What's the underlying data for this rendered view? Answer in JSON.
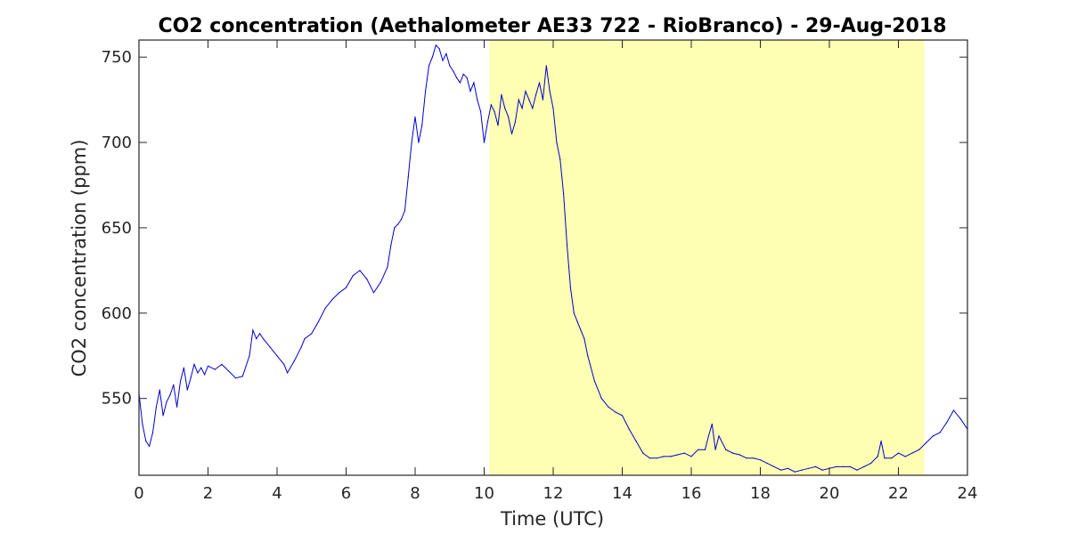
{
  "chart_data": {
    "type": "line",
    "title": "CO2 concentration (Aethalometer AE33 722 - RioBranco) - 29-Aug-2018",
    "xlabel": "Time (UTC)",
    "ylabel": "CO2 concentration (ppm)",
    "xlim": [
      0,
      24
    ],
    "ylim": [
      505,
      760
    ],
    "xticks": [
      0,
      2,
      4,
      6,
      8,
      10,
      12,
      14,
      16,
      18,
      20,
      22,
      24
    ],
    "yticks": [
      550,
      600,
      650,
      700,
      750
    ],
    "grid": false,
    "highlight_band": {
      "x_start": 10.15,
      "x_end": 22.75,
      "color": "#ffffb3"
    },
    "line_color": "#0000cc",
    "series": [
      {
        "x": [
          0.0,
          0.1,
          0.2,
          0.3,
          0.4,
          0.5,
          0.6,
          0.7,
          0.8,
          0.9,
          1.0,
          1.1,
          1.2,
          1.3,
          1.4,
          1.5,
          1.6,
          1.7,
          1.8,
          1.9,
          2.0,
          2.2,
          2.4,
          2.6,
          2.8,
          3.0,
          3.2,
          3.3,
          3.4,
          3.5,
          3.6,
          3.8,
          4.0,
          4.2,
          4.3,
          4.5,
          4.7,
          4.8,
          5.0,
          5.2,
          5.4,
          5.6,
          5.8,
          6.0,
          6.2,
          6.4,
          6.6,
          6.8,
          7.0,
          7.2,
          7.3,
          7.4,
          7.5,
          7.6,
          7.7,
          7.8,
          7.9,
          8.0,
          8.1,
          8.2,
          8.3,
          8.4,
          8.5,
          8.6,
          8.7,
          8.8,
          8.9,
          9.0,
          9.1,
          9.2,
          9.3,
          9.4,
          9.5,
          9.6,
          9.7,
          9.8,
          9.9,
          10.0,
          10.1,
          10.2,
          10.3,
          10.4,
          10.5,
          10.6,
          10.7,
          10.8,
          10.9,
          11.0,
          11.1,
          11.2,
          11.3,
          11.4,
          11.5,
          11.6,
          11.7,
          11.8,
          11.9,
          12.0,
          12.1,
          12.2,
          12.3,
          12.4,
          12.5,
          12.6,
          12.7,
          12.8,
          12.9,
          13.0,
          13.2,
          13.4,
          13.6,
          13.8,
          14.0,
          14.2,
          14.4,
          14.6,
          14.8,
          15.0,
          15.2,
          15.4,
          15.6,
          15.8,
          16.0,
          16.2,
          16.4,
          16.5,
          16.6,
          16.7,
          16.8,
          17.0,
          17.2,
          17.4,
          17.6,
          17.8,
          18.0,
          18.2,
          18.4,
          18.6,
          18.8,
          19.0,
          19.2,
          19.4,
          19.6,
          19.8,
          20.0,
          20.2,
          20.4,
          20.6,
          20.8,
          21.0,
          21.2,
          21.4,
          21.5,
          21.6,
          21.8,
          22.0,
          22.2,
          22.4,
          22.6,
          22.8,
          23.0,
          23.2,
          23.4,
          23.6,
          23.8,
          24.0
        ],
        "values": [
          553,
          535,
          525,
          522,
          530,
          545,
          555,
          540,
          548,
          552,
          558,
          545,
          560,
          568,
          555,
          562,
          570,
          565,
          568,
          564,
          569,
          567,
          570,
          566,
          562,
          563,
          575,
          590,
          585,
          588,
          585,
          580,
          575,
          570,
          565,
          572,
          580,
          585,
          588,
          595,
          603,
          608,
          612,
          615,
          622,
          625,
          620,
          612,
          618,
          627,
          640,
          650,
          652,
          655,
          660,
          680,
          700,
          715,
          700,
          710,
          730,
          745,
          750,
          757,
          755,
          748,
          752,
          745,
          742,
          738,
          735,
          740,
          738,
          730,
          735,
          725,
          718,
          700,
          712,
          722,
          718,
          710,
          728,
          720,
          715,
          705,
          712,
          725,
          720,
          730,
          725,
          720,
          728,
          735,
          725,
          745,
          730,
          720,
          700,
          690,
          670,
          640,
          615,
          600,
          595,
          590,
          585,
          575,
          560,
          550,
          545,
          542,
          540,
          532,
          525,
          518,
          515,
          515,
          516,
          516,
          517,
          518,
          516,
          520,
          520,
          528,
          535,
          520,
          528,
          520,
          518,
          517,
          515,
          515,
          514,
          512,
          510,
          508,
          509,
          507,
          508,
          509,
          510,
          508,
          509,
          510,
          510,
          510,
          508,
          510,
          512,
          516,
          525,
          515,
          515,
          518,
          516,
          518,
          520,
          524,
          528,
          530,
          536,
          543,
          538,
          532
        ]
      }
    ]
  }
}
